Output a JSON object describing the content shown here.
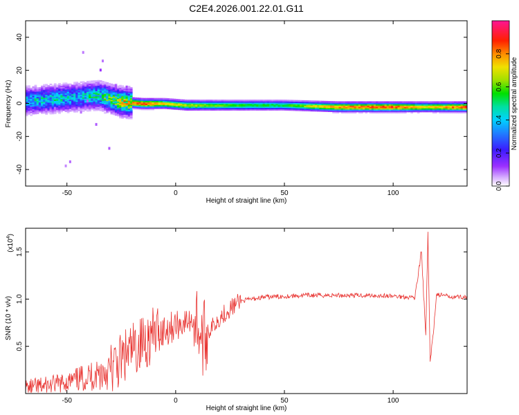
{
  "chart_data": [
    {
      "type": "heatmap",
      "title": "C2E4.2026.001.22.01.G11",
      "xlabel": "Height of straight line (km)",
      "ylabel": "Frequency (Hz)",
      "xlim": [
        -69,
        134
      ],
      "ylim": [
        -50,
        50
      ],
      "x_ticks": [
        -50,
        0,
        50,
        100
      ],
      "y_ticks": [
        -40,
        -20,
        0,
        20,
        40
      ],
      "colorbar": {
        "label": "Normalized spectral amplitude",
        "range": [
          0.0,
          1.0
        ],
        "ticks": [
          0.0,
          0.2,
          0.4,
          0.6,
          0.8
        ]
      },
      "ridge_track": [
        {
          "x": -65,
          "freq": 2,
          "amp": 0.45
        },
        {
          "x": -55,
          "freq": 3,
          "amp": 0.5
        },
        {
          "x": -45,
          "freq": 4,
          "amp": 0.45
        },
        {
          "x": -35,
          "freq": 5,
          "amp": 0.55
        },
        {
          "x": -25,
          "freq": 1,
          "amp": 0.75
        },
        {
          "x": -15,
          "freq": 0,
          "amp": 0.9
        },
        {
          "x": -5,
          "freq": 0,
          "amp": 0.75
        },
        {
          "x": 5,
          "freq": -1,
          "amp": 0.7
        },
        {
          "x": 25,
          "freq": -1,
          "amp": 0.6
        },
        {
          "x": 50,
          "freq": -1,
          "amp": 0.55
        },
        {
          "x": 75,
          "freq": -2,
          "amp": 0.85
        },
        {
          "x": 100,
          "freq": -2,
          "amp": 0.9
        },
        {
          "x": 115,
          "freq": -2,
          "amp": 0.75
        },
        {
          "x": 134,
          "freq": -2,
          "amp": 0.9
        }
      ]
    },
    {
      "type": "line",
      "xlabel": "Height of straight line (km)",
      "ylabel": "SNR (10 * v/v)",
      "y_multiplier": "(x10",
      "y_multiplier_exp": "4",
      "xlim": [
        -69,
        134
      ],
      "ylim": [
        0,
        1.75
      ],
      "x_ticks": [
        -50,
        0,
        50,
        100
      ],
      "y_ticks": [
        "0.5",
        "1.0",
        "1.5"
      ],
      "line_color": "#e8312e",
      "x": [
        -69,
        -60,
        -50,
        -40,
        -30,
        -25,
        -20,
        -15,
        -10,
        -5,
        0,
        5,
        10,
        12,
        14,
        20,
        25,
        30,
        40,
        50,
        60,
        70,
        80,
        90,
        100,
        110,
        113,
        115,
        116,
        117,
        120,
        125,
        134
      ],
      "y": [
        0.05,
        0.08,
        0.12,
        0.18,
        0.25,
        0.35,
        0.45,
        0.55,
        0.62,
        0.68,
        0.72,
        0.76,
        0.78,
        0.55,
        0.62,
        0.8,
        0.9,
        0.98,
        1.02,
        1.03,
        1.04,
        1.04,
        1.04,
        1.04,
        1.03,
        1.02,
        1.5,
        0.6,
        1.7,
        0.3,
        1.05,
        1.03,
        1.02
      ]
    }
  ]
}
